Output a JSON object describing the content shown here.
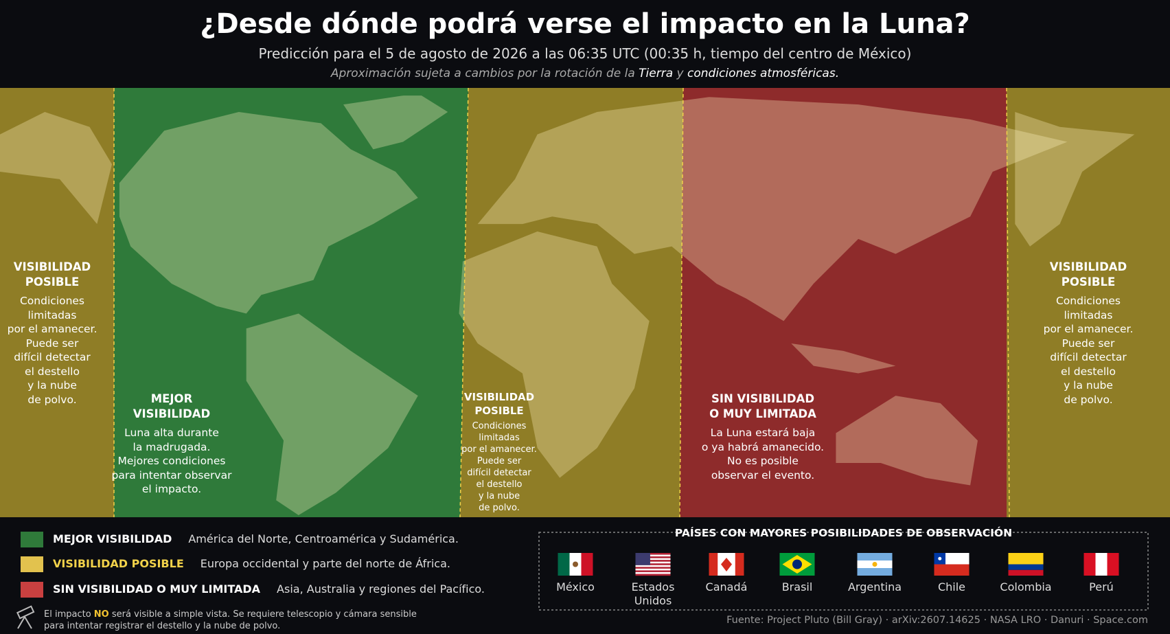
{
  "header": {
    "title": "¿Desde dónde podrá verse el impacto en la Luna?",
    "subtitle": "Predicción para el 5 de agosto de 2026 a las 06:35 UTC (00:35 h, tiempo del centro de México)",
    "note": [
      "Aproximación sujeta a cambios por la rotación de la",
      "Tierra",
      "y",
      "condiciones atmosféricas."
    ]
  },
  "zones": [
    {
      "title": [
        "VISIBILIDAD",
        "POSIBLE"
      ],
      "text": [
        "Condiciones",
        "limitadas",
        "por el amanecer.",
        "Puede ser",
        "difícil detectar",
        "el destello",
        "y la nube",
        "de polvo."
      ]
    },
    {
      "title": [
        "MEJOR",
        "VISIBILIDAD"
      ],
      "text": [
        "Luna alta durante",
        "la madrugada.",
        "Mejores condiciones",
        "para intentar observar",
        "el impacto."
      ]
    },
    {
      "title": [
        "VISIBILIDAD",
        "POSIBLE"
      ],
      "text": [
        "Condiciones",
        "limitadas",
        "por el amanecer.",
        "Puede ser",
        "difícil detectar",
        "el destello",
        "y la nube",
        "de polvo."
      ]
    },
    {
      "title": [
        "SIN VISIBILIDAD",
        "O MUY LIMITADA"
      ],
      "text": [
        "La Luna estará baja",
        "o ya habrá amanecido.",
        "No es posible",
        "observar el evento."
      ]
    },
    {
      "title": [
        "VISIBILIDAD",
        "POSIBLE"
      ],
      "text": [
        "Condiciones",
        "limitadas",
        "por el amanecer.",
        "Puede ser",
        "difícil detectar",
        "el destello",
        "y la nube",
        "de polvo."
      ]
    }
  ],
  "legend": [
    {
      "name": "MEJOR VISIBILIDAD",
      "regions": "América del Norte, Centroamérica y Sudamérica."
    },
    {
      "name": "VISIBILIDAD POSIBLE",
      "regions": "Europa occidental y parte del norte de África."
    },
    {
      "name": "SIN VISIBILIDAD O MUY LIMITADA",
      "regions": "Asia, Australia y regiones del Pacífico."
    }
  ],
  "footnote": [
    "El impacto",
    "NO",
    "será visible a simple vista. Se requiere telescopio y cámara sensible para intentar registrar el destello y la nube de polvo."
  ],
  "countries": {
    "title": "PAÍSES CON MAYORES POSIBILIDADES DE OBSERVACIÓN",
    "items": [
      "México",
      "Estados Unidos",
      "Canadá",
      "Brasil",
      "Argentina",
      "Chile",
      "Colombia",
      "Perú"
    ]
  },
  "source": "Fuente: Project Pluto (Bill Gray) · arXiv:2607.14625 · NASA LRO · Danuri · Space.com"
}
